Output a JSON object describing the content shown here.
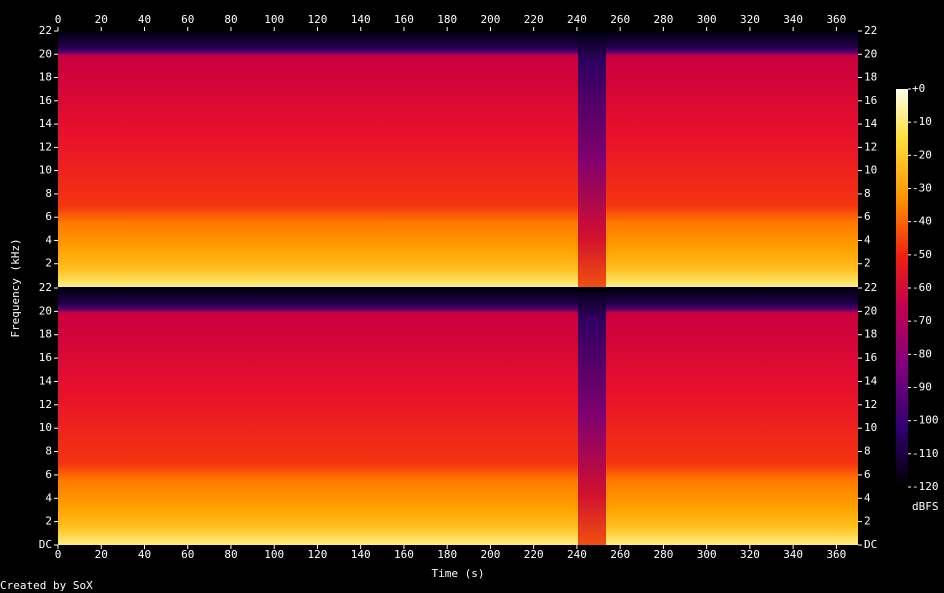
{
  "chart_data": {
    "type": "spectrogram",
    "xlabel": "Time (s)",
    "ylabel": "Frequency (kHz)",
    "xlim": [
      0,
      370
    ],
    "xticks": [
      0,
      20,
      40,
      60,
      80,
      100,
      120,
      140,
      160,
      180,
      200,
      220,
      240,
      260,
      280,
      300,
      320,
      340,
      360
    ],
    "panels": [
      {
        "ylim": [
          0,
          22
        ],
        "yticks": [
          2,
          4,
          6,
          8,
          10,
          12,
          14,
          16,
          18,
          20,
          22
        ]
      },
      {
        "ylim": [
          0,
          22
        ],
        "yticks": [
          {
            "value": 0,
            "label": "DC"
          },
          2,
          4,
          6,
          8,
          10,
          12,
          14,
          16,
          18,
          20,
          22
        ]
      }
    ],
    "colorbar": {
      "label": "dBFS",
      "lim": [
        -120,
        0
      ],
      "ticks": [
        {
          "value": 0,
          "label": "+0"
        },
        -10,
        -20,
        -30,
        -40,
        -50,
        -60,
        -70,
        -80,
        -90,
        -100,
        -110,
        -120
      ]
    },
    "credit": "Created by SoX"
  }
}
